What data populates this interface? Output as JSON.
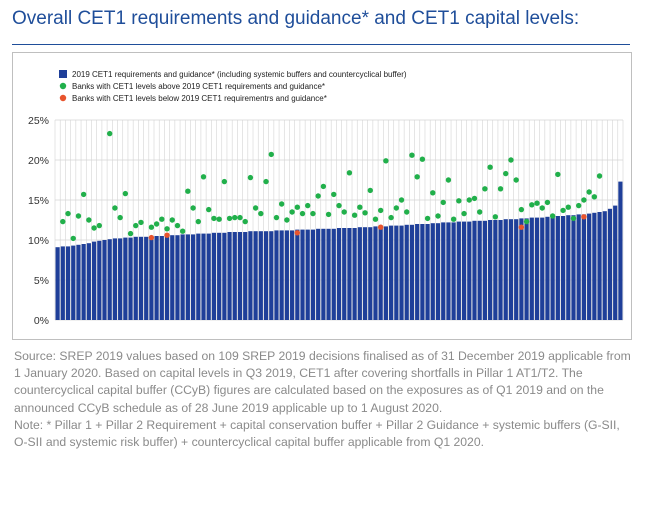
{
  "title": "Overall CET1 requirements and guidance* and CET1 capital levels:",
  "chart_data": {
    "type": "bar",
    "ylim": [
      0,
      25
    ],
    "yticks": [
      0,
      5,
      10,
      15,
      20,
      25
    ],
    "ytick_labels": [
      "0%",
      "5%",
      "10%",
      "15%",
      "20%",
      "25%"
    ],
    "grid": true,
    "legend_position": "top-left",
    "series": [
      {
        "name": "2019 CET1 requirements and guidance* (including systemic buffers and countercyclical buffer)",
        "type": "bar",
        "color": "#1f3f99",
        "values": [
          9.1,
          9.2,
          9.2,
          9.3,
          9.4,
          9.5,
          9.6,
          9.8,
          9.9,
          10.0,
          10.1,
          10.2,
          10.2,
          10.3,
          10.3,
          10.4,
          10.4,
          10.4,
          10.5,
          10.5,
          10.5,
          10.6,
          10.6,
          10.6,
          10.7,
          10.7,
          10.7,
          10.8,
          10.8,
          10.8,
          10.9,
          10.9,
          10.9,
          11.0,
          11.0,
          11.0,
          11.0,
          11.1,
          11.1,
          11.1,
          11.1,
          11.1,
          11.2,
          11.2,
          11.2,
          11.2,
          11.3,
          11.3,
          11.3,
          11.3,
          11.4,
          11.4,
          11.4,
          11.4,
          11.5,
          11.5,
          11.5,
          11.5,
          11.6,
          11.6,
          11.6,
          11.7,
          11.7,
          11.7,
          11.8,
          11.8,
          11.8,
          11.9,
          11.9,
          12.0,
          12.0,
          12.0,
          12.1,
          12.1,
          12.2,
          12.2,
          12.2,
          12.3,
          12.3,
          12.3,
          12.4,
          12.4,
          12.4,
          12.5,
          12.5,
          12.5,
          12.6,
          12.6,
          12.6,
          12.7,
          12.7,
          12.8,
          12.8,
          12.8,
          12.9,
          12.9,
          13.0,
          13.0,
          13.1,
          13.1,
          13.2,
          13.2,
          13.3,
          13.4,
          13.5,
          13.6,
          13.9,
          14.3,
          17.3
        ]
      },
      {
        "name": "Banks with CET1 levels above 2019 CET1 requirements and guidance*",
        "type": "scatter",
        "color": "#21b04b",
        "points": [
          [
            1,
            12.3
          ],
          [
            2,
            13.3
          ],
          [
            3,
            10.2
          ],
          [
            4,
            13.0
          ],
          [
            5,
            15.7
          ],
          [
            6,
            12.5
          ],
          [
            7,
            11.5
          ],
          [
            8,
            11.8
          ],
          [
            10,
            23.3
          ],
          [
            11,
            14.0
          ],
          [
            12,
            12.8
          ],
          [
            13,
            15.8
          ],
          [
            14,
            10.8
          ],
          [
            15,
            11.8
          ],
          [
            16,
            12.2
          ],
          [
            18,
            11.6
          ],
          [
            19,
            12.0
          ],
          [
            20,
            12.6
          ],
          [
            21,
            11.4
          ],
          [
            22,
            12.5
          ],
          [
            23,
            11.8
          ],
          [
            24,
            11.1
          ],
          [
            25,
            16.1
          ],
          [
            26,
            14.0
          ],
          [
            27,
            12.3
          ],
          [
            28,
            17.9
          ],
          [
            29,
            13.8
          ],
          [
            30,
            12.7
          ],
          [
            31,
            12.6
          ],
          [
            32,
            17.3
          ],
          [
            33,
            12.7
          ],
          [
            34,
            12.8
          ],
          [
            35,
            12.8
          ],
          [
            36,
            12.3
          ],
          [
            37,
            17.8
          ],
          [
            38,
            14.0
          ],
          [
            39,
            13.3
          ],
          [
            40,
            17.3
          ],
          [
            41,
            20.7
          ],
          [
            42,
            12.8
          ],
          [
            43,
            14.5
          ],
          [
            44,
            12.5
          ],
          [
            45,
            13.5
          ],
          [
            46,
            14.1
          ],
          [
            47,
            13.3
          ],
          [
            48,
            14.3
          ],
          [
            49,
            13.3
          ],
          [
            50,
            15.5
          ],
          [
            51,
            16.7
          ],
          [
            52,
            13.2
          ],
          [
            53,
            15.7
          ],
          [
            54,
            14.3
          ],
          [
            55,
            13.5
          ],
          [
            56,
            18.4
          ],
          [
            57,
            13.1
          ],
          [
            58,
            14.1
          ],
          [
            59,
            13.4
          ],
          [
            60,
            16.2
          ],
          [
            61,
            12.6
          ],
          [
            62,
            13.7
          ],
          [
            63,
            19.9
          ],
          [
            64,
            12.8
          ],
          [
            65,
            14.0
          ],
          [
            66,
            15.0
          ],
          [
            67,
            13.5
          ],
          [
            68,
            20.6
          ],
          [
            69,
            17.9
          ],
          [
            70,
            20.1
          ],
          [
            71,
            12.7
          ],
          [
            72,
            15.9
          ],
          [
            73,
            13.0
          ],
          [
            74,
            14.7
          ],
          [
            75,
            17.5
          ],
          [
            76,
            12.6
          ],
          [
            77,
            14.9
          ],
          [
            78,
            13.3
          ],
          [
            79,
            15.0
          ],
          [
            80,
            15.2
          ],
          [
            81,
            13.5
          ],
          [
            82,
            16.4
          ],
          [
            83,
            19.1
          ],
          [
            84,
            12.9
          ],
          [
            85,
            16.4
          ],
          [
            86,
            18.3
          ],
          [
            87,
            20.0
          ],
          [
            88,
            17.5
          ],
          [
            89,
            13.8
          ],
          [
            90,
            12.3
          ],
          [
            91,
            14.4
          ],
          [
            92,
            14.6
          ],
          [
            93,
            14.0
          ],
          [
            94,
            14.7
          ],
          [
            95,
            13.0
          ],
          [
            96,
            18.2
          ],
          [
            97,
            13.7
          ],
          [
            98,
            14.1
          ],
          [
            99,
            12.7
          ],
          [
            100,
            14.3
          ],
          [
            101,
            15.0
          ],
          [
            102,
            16.0
          ],
          [
            103,
            15.4
          ],
          [
            104,
            18.0
          ]
        ]
      },
      {
        "name": "Banks with CET1 levels below  2019 CET1 requirementrs and guidance*",
        "type": "scatter",
        "color": "#e8542d",
        "points": [
          [
            18,
            10.3
          ],
          [
            21,
            10.6
          ],
          [
            46,
            10.9
          ],
          [
            62,
            11.6
          ],
          [
            89,
            11.6
          ],
          [
            101,
            12.9
          ]
        ]
      }
    ]
  },
  "notes": [
    "Source: SREP 2019 values based on 109 SREP 2019 decisions finalised as of 31 December 2019 applicable from 1 January 2020. Based on capital levels in Q3 2019, CET1 after covering shortfalls in Pillar 1 AT1/T2. The countercyclical capital buffer (CCyB) figures are calculated based on the exposures as of Q1 2019 and on the announced CCyB schedule as of 28 June 2019 applicable up to 1 August 2020.",
    "Note: * Pillar 1 + Pillar 2 Requirement + capital conservation buffer + Pillar 2 Guidance + systemic buffers (G-SII, O-SII and systemic risk buffer) + countercyclical capital buffer applicable from Q1 2020."
  ]
}
